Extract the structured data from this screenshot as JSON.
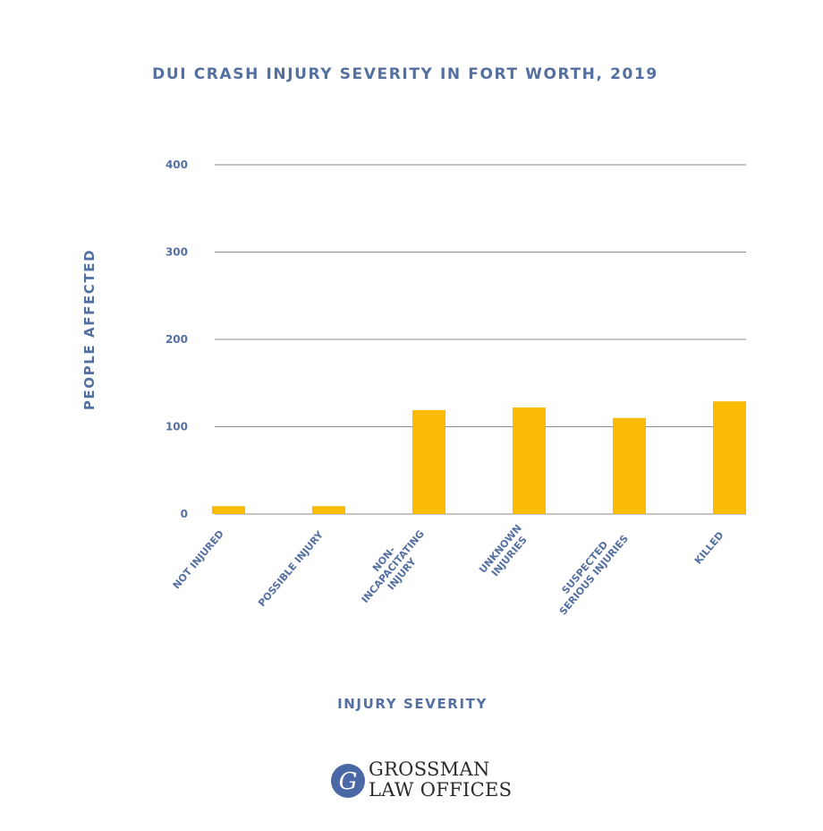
{
  "chart_data": {
    "type": "bar",
    "title": "DUI CRASH INJURY SEVERITY IN FORT WORTH, 2019",
    "xlabel": "INJURY SEVERITY",
    "ylabel": "PEOPLE AFFECTED",
    "ylim": [
      0,
      400
    ],
    "yticks": [
      "0",
      "100",
      "200",
      "300",
      "400"
    ],
    "grid": true,
    "categories": [
      [
        "NOT INJURED"
      ],
      [
        "POSSIBLE INJURY"
      ],
      [
        "NON-",
        "INCAPACITATING",
        "INJURY"
      ],
      [
        "UNKNOWN",
        "INJURIES"
      ],
      [
        "SUSPECTED",
        "SERIOUS INJURIES"
      ],
      [
        "KILLED"
      ]
    ],
    "values": [
      9,
      9,
      119,
      122,
      110,
      129
    ],
    "bar_color": "#fbbb05",
    "text_color": "#5470a1"
  },
  "logo": {
    "line1": "GROSSMAN",
    "line2": "LAW OFFICES",
    "mark": "G",
    "color": "#4a67a6"
  }
}
